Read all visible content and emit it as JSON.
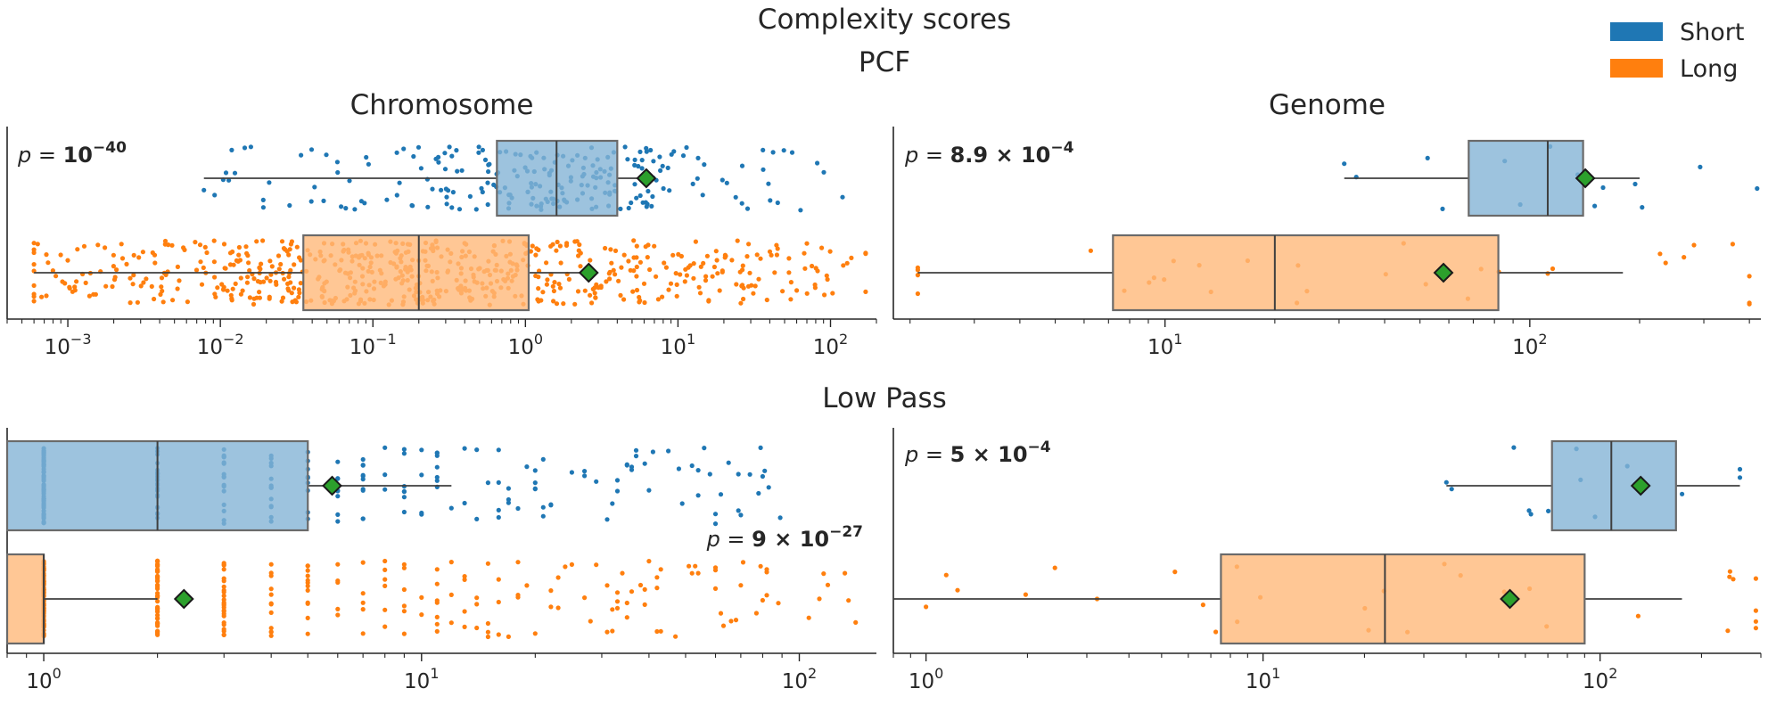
{
  "suptitle": "Complexity scores",
  "colors": {
    "short": "#1f77b4",
    "long": "#ff7f0e",
    "mean_marker": "#2ca02c",
    "axis": "#262626"
  },
  "legend": {
    "placement": "top-right",
    "items": [
      {
        "label": "Short",
        "color": "#1f77b4"
      },
      {
        "label": "Long",
        "color": "#ff7f0e"
      }
    ]
  },
  "sections": [
    {
      "title": "PCF"
    },
    {
      "title": "Low Pass"
    }
  ],
  "chart_data": [
    {
      "type": "box",
      "section": "PCF",
      "title": "Chromosome",
      "xscale": "log",
      "xlim": [
        0.0004,
        200
      ],
      "xticks": [
        {
          "value": 0.001,
          "base": "10",
          "exp": "−3"
        },
        {
          "value": 0.01,
          "base": "10",
          "exp": "−2"
        },
        {
          "value": 0.1,
          "base": "10",
          "exp": "−1"
        },
        {
          "value": 1,
          "base": "10",
          "exp": "0"
        },
        {
          "value": 10,
          "base": "10",
          "exp": "1"
        },
        {
          "value": 100,
          "base": "10",
          "exp": "2"
        }
      ],
      "pvalue": {
        "prefix": "p =",
        "mantissa": "",
        "exp": "−40",
        "placement": "top-left"
      },
      "series": [
        {
          "name": "Short",
          "color": "#1f77b4",
          "whisker_low": 0.0078,
          "q1": 0.65,
          "median": 1.6,
          "q3": 4.0,
          "whisker_high": 6.2,
          "mean": 6.2,
          "n_points": 230,
          "spread_low": 0.0078,
          "spread_high": 120
        },
        {
          "name": "Long",
          "color": "#ff7f0e",
          "whisker_low": 0.0006,
          "q1": 0.035,
          "median": 0.2,
          "q3": 1.05,
          "whisker_high": 2.6,
          "mean": 2.6,
          "n_points": 650,
          "spread_low": 0.0006,
          "spread_high": 170
        }
      ]
    },
    {
      "type": "box",
      "section": "PCF",
      "title": "Genome",
      "xscale": "log",
      "xlim": [
        1.8,
        430
      ],
      "xticks": [
        {
          "value": 10,
          "base": "10",
          "exp": "1"
        },
        {
          "value": 100,
          "base": "10",
          "exp": "2"
        }
      ],
      "pvalue": {
        "prefix": "p =",
        "mantissa": "8.9 × 10",
        "exp": "−4",
        "placement": "top-left"
      },
      "series": [
        {
          "name": "Short",
          "color": "#1f77b4",
          "whisker_low": 31,
          "q1": 68,
          "median": 112,
          "q3": 140,
          "whisker_high": 200,
          "mean": 142,
          "n_points": 14,
          "spread_low": 31,
          "spread_high": 420
        },
        {
          "name": "Long",
          "color": "#ff7f0e",
          "whisker_low": 2.1,
          "q1": 7.2,
          "median": 20,
          "q3": 82,
          "whisker_high": 180,
          "mean": 58,
          "n_points": 32,
          "spread_low": 2.1,
          "spread_high": 400
        }
      ]
    },
    {
      "type": "box",
      "section": "Low Pass",
      "title": "",
      "xscale": "log",
      "xlim": [
        0.8,
        160
      ],
      "xticks": [
        {
          "value": 1,
          "base": "10",
          "exp": "0"
        },
        {
          "value": 10,
          "base": "10",
          "exp": "1"
        },
        {
          "value": 100,
          "base": "10",
          "exp": "2"
        }
      ],
      "pvalue": {
        "prefix": "p =",
        "mantissa": "9 × 10",
        "exp": "−27",
        "placement": "middle-right"
      },
      "series": [
        {
          "name": "Short",
          "color": "#1f77b4",
          "whisker_low": 0.8,
          "q1": 0.8,
          "median": 2,
          "q3": 5,
          "whisker_high": 12,
          "mean": 5.8,
          "n_points": 230,
          "spread_low": 1,
          "spread_high": 90
        },
        {
          "name": "Long",
          "color": "#ff7f0e",
          "whisker_low": 0.8,
          "q1": 0.8,
          "median": 1,
          "q3": 1,
          "whisker_high": 2,
          "mean": 2.35,
          "n_points": 300,
          "spread_low": 1,
          "spread_high": 150
        }
      ]
    },
    {
      "type": "box",
      "section": "Low Pass",
      "title": "",
      "xscale": "log",
      "xlim": [
        0.8,
        300
      ],
      "xticks": [
        {
          "value": 1,
          "base": "10",
          "exp": "0"
        },
        {
          "value": 10,
          "base": "10",
          "exp": "1"
        },
        {
          "value": 100,
          "base": "10",
          "exp": "2"
        }
      ],
      "pvalue": {
        "prefix": "p =",
        "mantissa": "5 × 10",
        "exp": "−4",
        "placement": "top-left"
      },
      "series": [
        {
          "name": "Short",
          "color": "#1f77b4",
          "whisker_low": 35,
          "q1": 72,
          "median": 108,
          "q3": 168,
          "whisker_high": 260,
          "mean": 132,
          "n_points": 14,
          "spread_low": 35,
          "spread_high": 260
        },
        {
          "name": "Long",
          "color": "#ff7f0e",
          "whisker_low": 0.8,
          "q1": 7.5,
          "median": 23,
          "q3": 90,
          "whisker_high": 175,
          "mean": 54,
          "n_points": 30,
          "spread_low": 1,
          "spread_high": 290
        }
      ]
    }
  ]
}
